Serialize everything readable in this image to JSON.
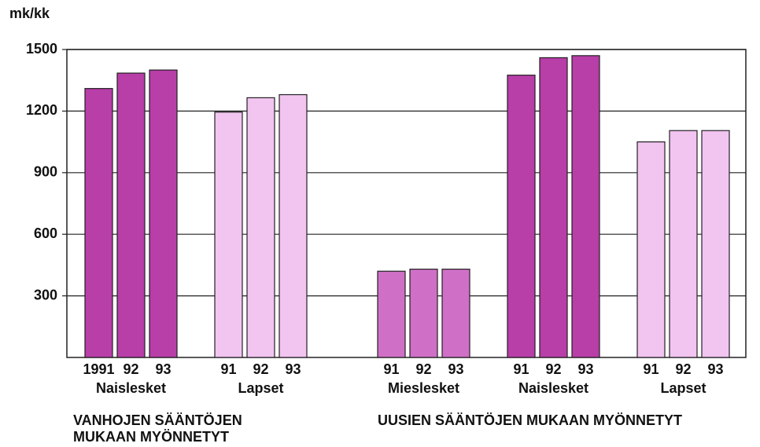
{
  "chart_data": {
    "type": "bar",
    "y_label": "mk/kk",
    "ylim": [
      0,
      1500
    ],
    "yticks": [
      300,
      600,
      900,
      1200,
      1500
    ],
    "grid": true,
    "groups": [
      {
        "name": "Naislesket",
        "color": "#b83ea8",
        "categories": [
          "1991",
          "92",
          "93"
        ],
        "values": [
          1310,
          1385,
          1400
        ]
      },
      {
        "name": "Lapset",
        "color": "#f2c4f0",
        "categories": [
          "91",
          "92",
          "93"
        ],
        "values": [
          1195,
          1265,
          1280
        ]
      },
      {
        "name": "Mieslesket",
        "color": "#cf70c6",
        "categories": [
          "91",
          "92",
          "93"
        ],
        "values": [
          420,
          430,
          430
        ]
      },
      {
        "name": "Naislesket",
        "color": "#b83ea8",
        "categories": [
          "91",
          "92",
          "93"
        ],
        "values": [
          1375,
          1460,
          1470
        ]
      },
      {
        "name": "Lapset",
        "color": "#f2c4f0",
        "categories": [
          "91",
          "92",
          "93"
        ],
        "values": [
          1050,
          1105,
          1105
        ]
      }
    ],
    "sections": [
      {
        "label": [
          "VANHOJEN SÄÄNTÖJEN",
          "MUKAAN MYÖNNETYT"
        ]
      },
      {
        "label": [
          "UUSIEN SÄÄNTÖJEN MUKAAN MYÖNNETYT"
        ]
      }
    ]
  }
}
